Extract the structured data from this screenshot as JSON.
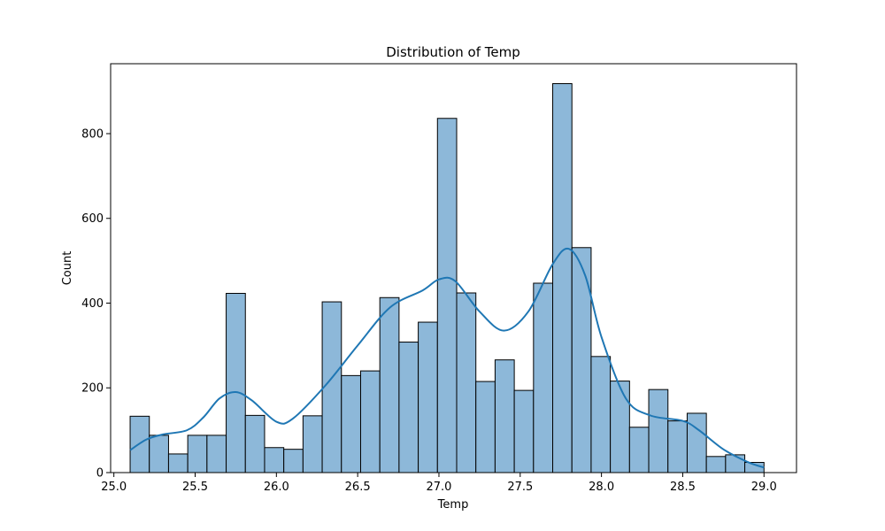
{
  "chart_data": {
    "type": "bar",
    "title": "Distribution of Temp",
    "xlabel": "Temp",
    "ylabel": "Count",
    "xlim": [
      24.98,
      29.2
    ],
    "ylim": [
      0,
      965
    ],
    "xticks": [
      25.0,
      25.5,
      26.0,
      26.5,
      27.0,
      27.5,
      28.0,
      28.5,
      29.0
    ],
    "xtick_labels": [
      "25.0",
      "25.5",
      "26.0",
      "26.5",
      "27.0",
      "27.5",
      "28.0",
      "28.5",
      "29.0"
    ],
    "yticks": [
      0,
      200,
      400,
      600,
      800
    ],
    "ytick_labels": [
      "0",
      "200",
      "400",
      "600",
      "800"
    ],
    "grid": false,
    "bin_start": 25.1,
    "bin_end": 29.0,
    "counts": [
      133,
      88,
      44,
      88,
      88,
      423,
      135,
      59,
      55,
      134,
      403,
      229,
      240,
      413,
      308,
      355,
      836,
      424,
      215,
      266,
      194,
      447,
      918,
      531,
      274,
      216,
      107,
      196,
      122,
      140,
      38,
      42,
      24
    ],
    "kde": {
      "x": [
        25.1,
        25.2,
        25.3,
        25.45,
        25.55,
        25.65,
        25.75,
        25.85,
        26.0,
        26.1,
        26.3,
        26.5,
        26.7,
        26.9,
        27.0,
        27.1,
        27.25,
        27.4,
        27.55,
        27.7,
        27.8,
        27.9,
        28.0,
        28.15,
        28.3,
        28.5,
        28.6,
        28.75,
        28.9,
        29.0
      ],
      "y": [
        53,
        78,
        90,
        100,
        130,
        175,
        190,
        170,
        120,
        127,
        205,
        300,
        390,
        430,
        456,
        452,
        380,
        335,
        380,
        492,
        528,
        465,
        320,
        175,
        135,
        122,
        100,
        55,
        25,
        12
      ]
    },
    "bar_color": "#8db8d9",
    "bar_edge_color": "#000000",
    "line_color": "#1f77b4"
  }
}
